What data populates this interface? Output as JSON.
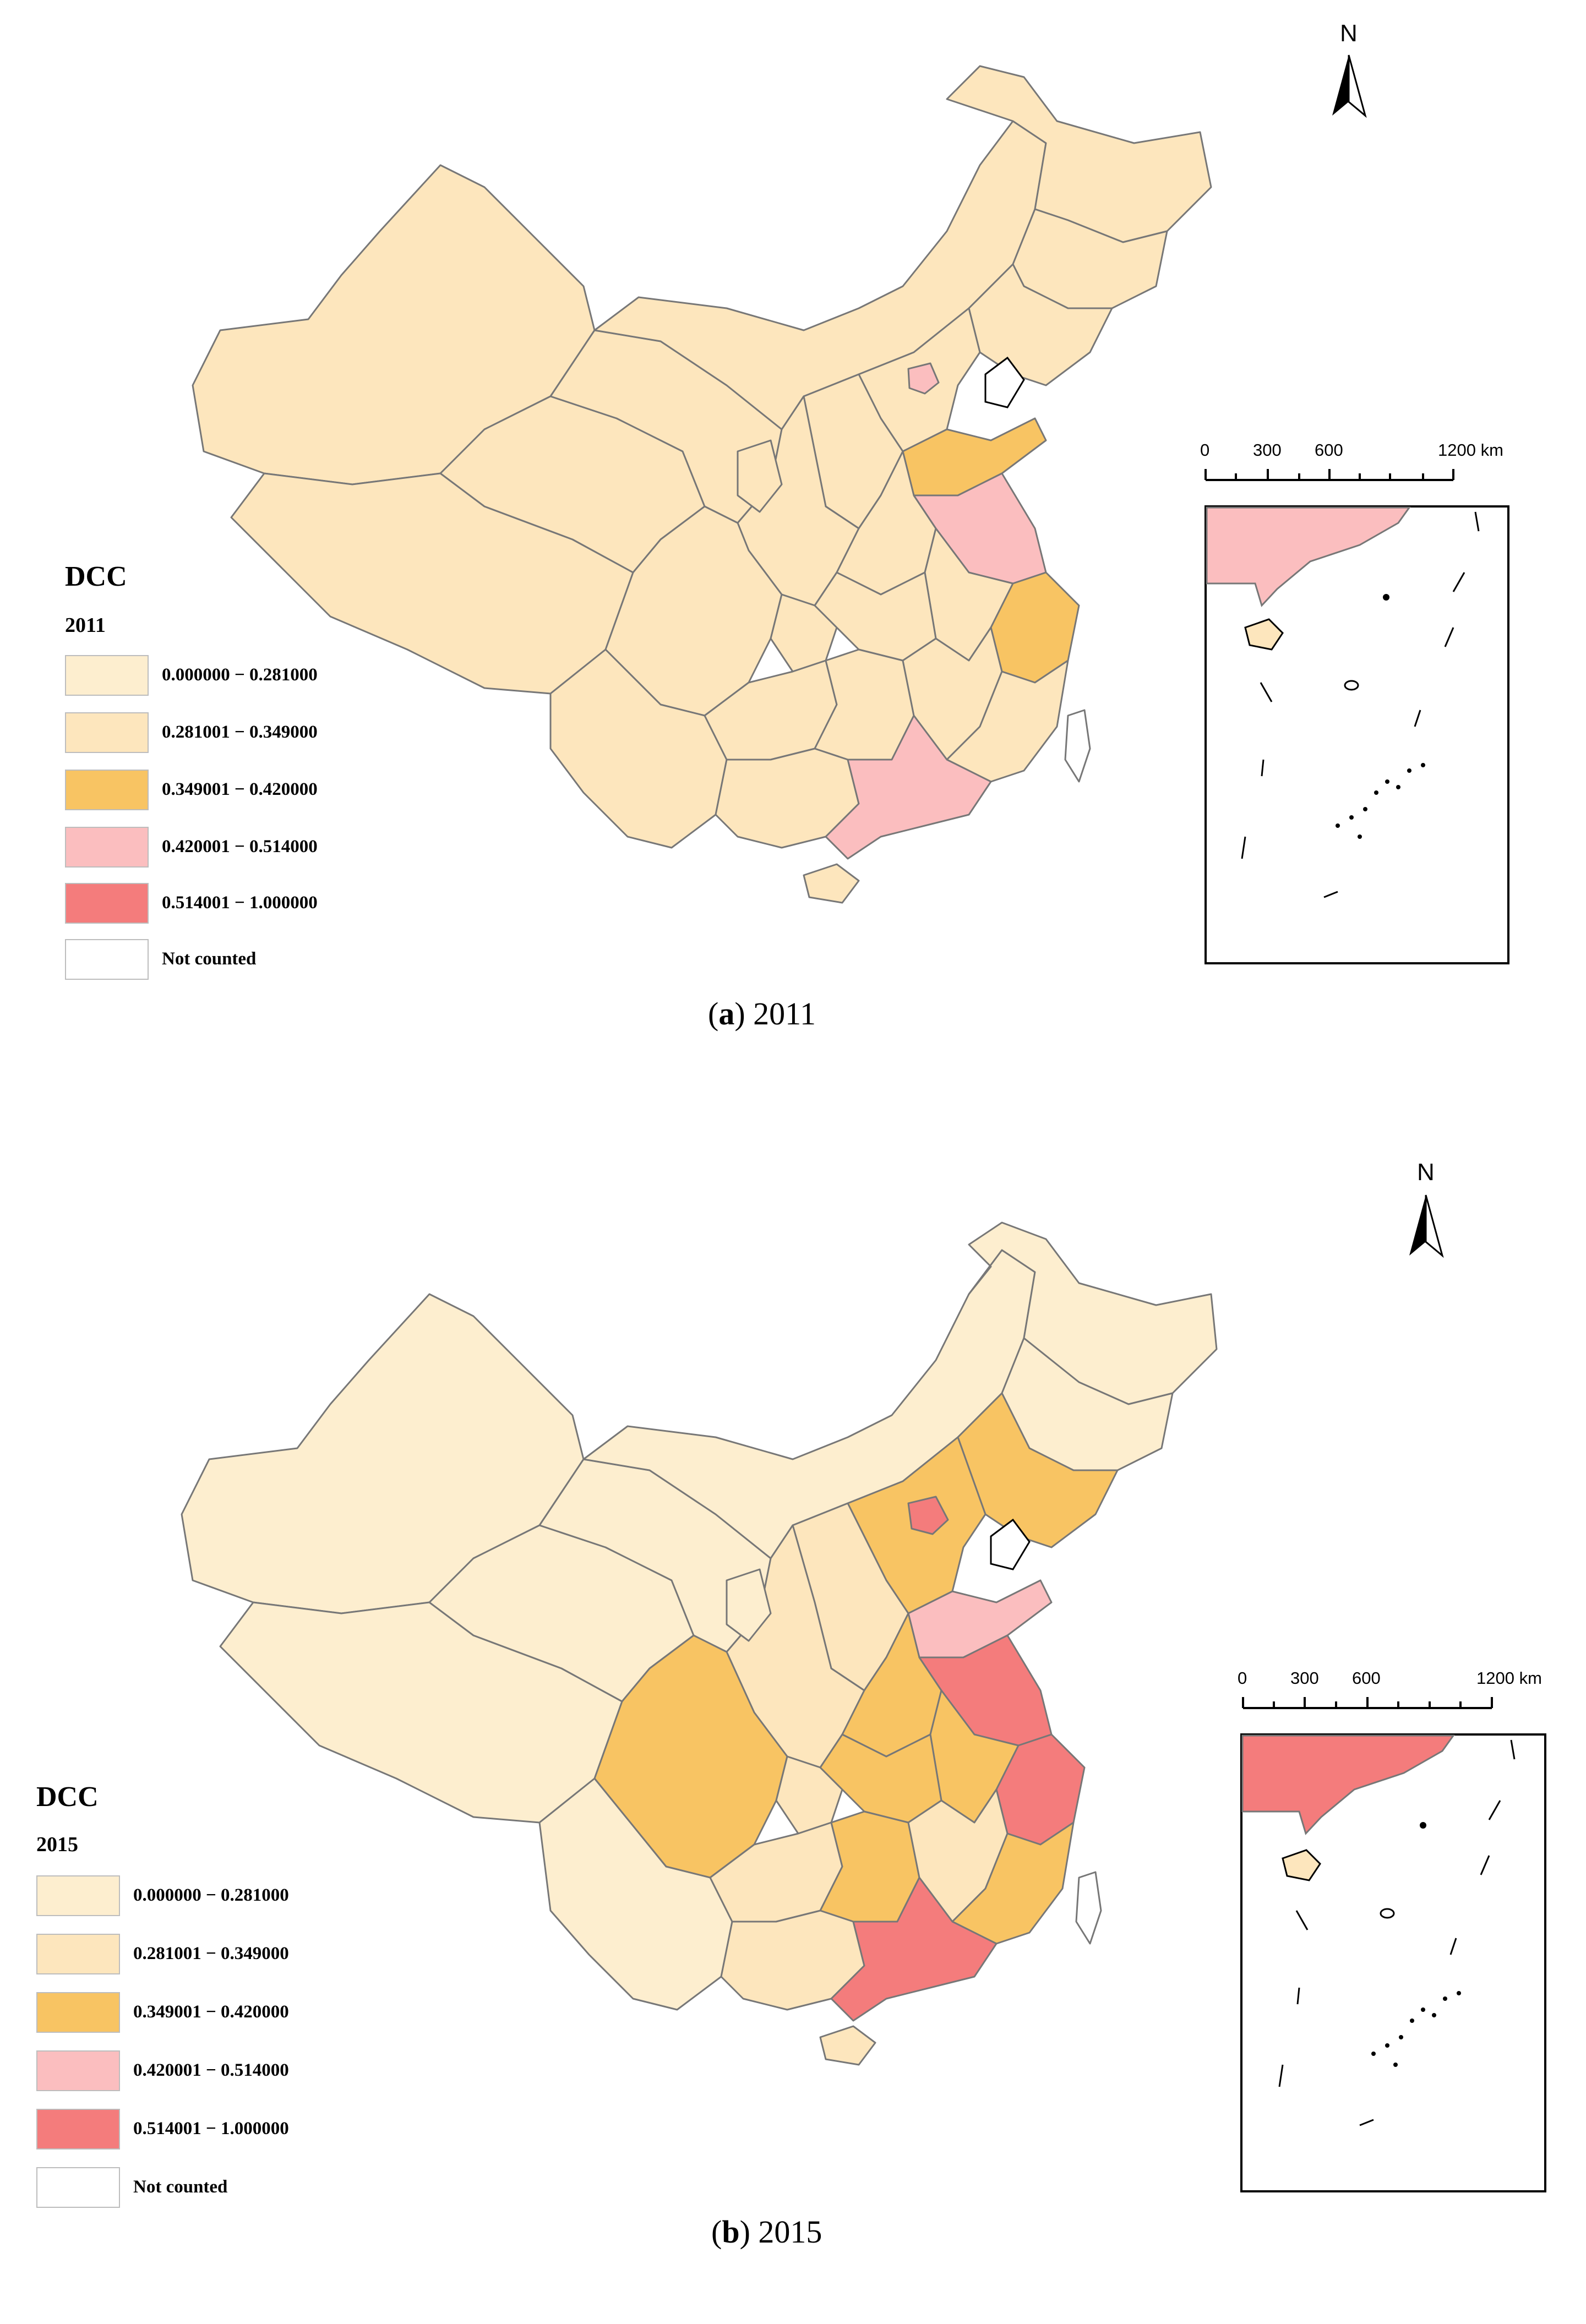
{
  "legend": {
    "title": "DCC",
    "classes": [
      {
        "label": "0.000000 − 0.281000",
        "color": "#fdeecf"
      },
      {
        "label": "0.281001 − 0.349000",
        "color": "#fde6bd"
      },
      {
        "label": "0.349001 − 0.420000",
        "color": "#f8c463"
      },
      {
        "label": "0.420001 − 0.514000",
        "color": "#fbbebf"
      },
      {
        "label": "0.514001 − 1.000000",
        "color": "#f47c7c"
      },
      {
        "label": "Not counted",
        "color": "#ffffff"
      }
    ]
  },
  "north_arrow": {
    "label": "N"
  },
  "scale_bar": {
    "ticks": [
      "0",
      "300",
      "600",
      "1200 km"
    ]
  },
  "panels": [
    {
      "year": "2011",
      "caption": {
        "letter": "a",
        "text": ") 2011"
      },
      "province_classes": {
        "Xinjiang": 1,
        "Tibet": 1,
        "Qinghai": 1,
        "Gansu": 1,
        "Inner Mongolia": 1,
        "Heilongjiang": 1,
        "Jilin": 1,
        "Liaoning": 1,
        "Hebei": 1,
        "Beijing": 3,
        "Shanxi": 1,
        "Shaanxi": 1,
        "Ningxia": 1,
        "Sichuan": 1,
        "Yunnan": 1,
        "Guizhou": 1,
        "Guangxi": 1,
        "Chongqing": 1,
        "Hubei": 1,
        "Hunan": 1,
        "Henan": 1,
        "Shandong": 2,
        "Jiangsu": 3,
        "Anhui": 1,
        "Zhejiang": 2,
        "Jiangxi": 1,
        "Fujian": 1,
        "Guangdong": 3,
        "Hainan": 1,
        "Taiwan": 5
      }
    },
    {
      "year": "2015",
      "caption": {
        "letter": "b",
        "text": ") 2015"
      },
      "province_classes": {
        "Xinjiang": 0,
        "Tibet": 0,
        "Qinghai": 0,
        "Gansu": 0,
        "Inner Mongolia": 0,
        "Heilongjiang": 0,
        "Jilin": 0,
        "Liaoning": 2,
        "Hebei": 2,
        "Beijing": 4,
        "Shanxi": 1,
        "Shaanxi": 1,
        "Ningxia": 0,
        "Sichuan": 2,
        "Yunnan": 0,
        "Guizhou": 1,
        "Guangxi": 1,
        "Chongqing": 1,
        "Hubei": 2,
        "Hunan": 2,
        "Henan": 2,
        "Shandong": 3,
        "Jiangsu": 4,
        "Anhui": 2,
        "Zhejiang": 4,
        "Jiangxi": 1,
        "Fujian": 2,
        "Guangdong": 4,
        "Hainan": 1,
        "Taiwan": 5
      }
    }
  ]
}
